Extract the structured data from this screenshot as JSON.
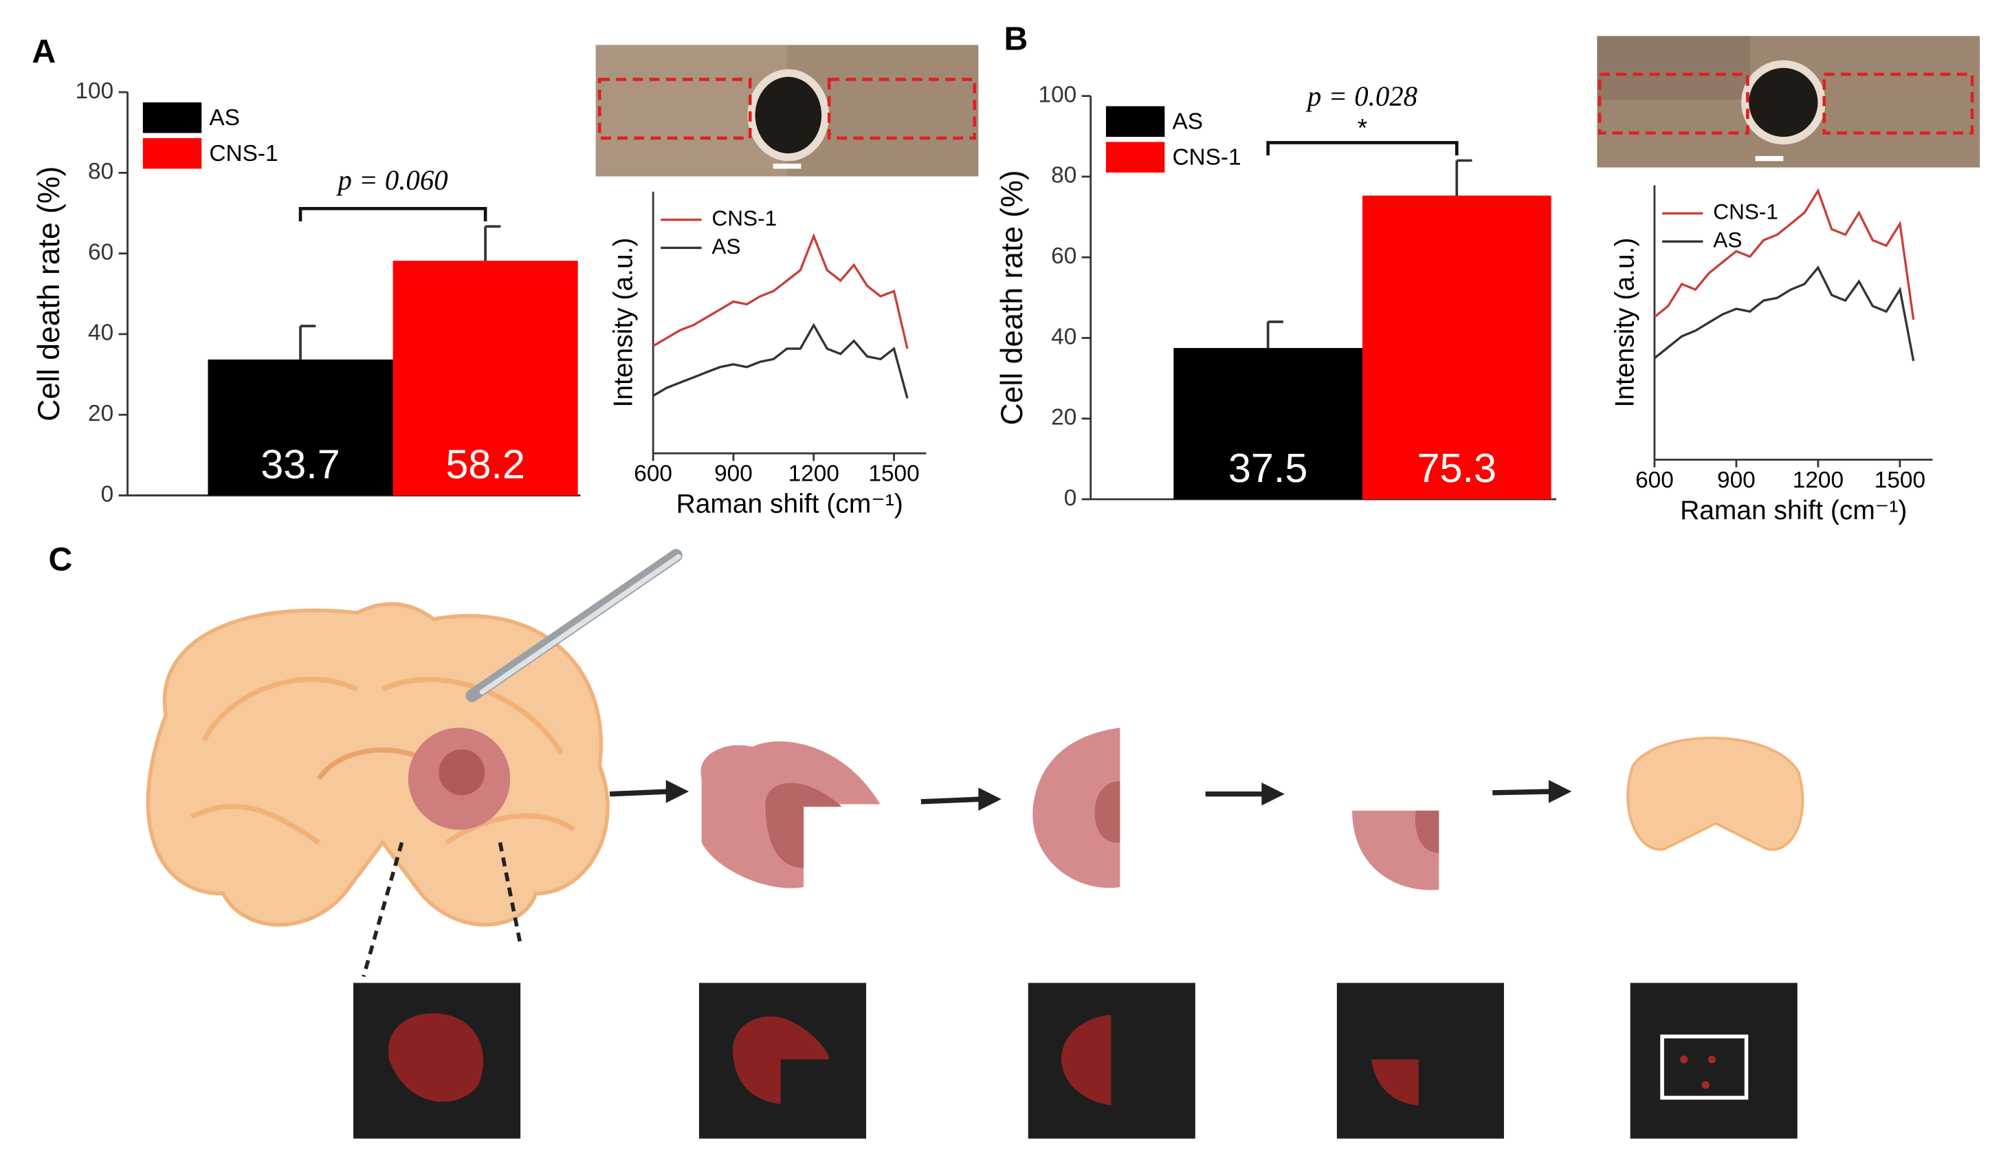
{
  "panel_labels": [
    "A",
    "B",
    "C"
  ],
  "chart_data": [
    {
      "type": "bar",
      "categories": [
        "AS",
        "CNS-1"
      ],
      "values": [
        33.7,
        58.2
      ],
      "errors": [
        8.3,
        8.5
      ],
      "colors": [
        "#000000",
        "#ff0000"
      ],
      "ylabel": "Cell death rate (%)",
      "ylim": [
        0,
        100
      ],
      "yticks": [
        0,
        20,
        40,
        60,
        80,
        100
      ],
      "annotation": "p = 0.060",
      "legend": "top-left"
    },
    {
      "type": "line",
      "xlabel": "Raman shift (cm⁻¹)",
      "ylabel": "Intensity (a.u.)",
      "xlim": [
        600,
        1620
      ],
      "ylim": [
        0,
        1
      ],
      "xticks": [
        600,
        900,
        1200,
        1500
      ],
      "legend": "top-left",
      "x": [
        600,
        650,
        700,
        750,
        800,
        850,
        900,
        950,
        1000,
        1050,
        1100,
        1150,
        1200,
        1250,
        1300,
        1350,
        1400,
        1450,
        1500,
        1550
      ],
      "series": [
        {
          "name": "CNS-1",
          "color": "#c8403a",
          "values": [
            0.41,
            0.44,
            0.47,
            0.49,
            0.52,
            0.55,
            0.58,
            0.57,
            0.6,
            0.62,
            0.66,
            0.7,
            0.83,
            0.7,
            0.66,
            0.72,
            0.64,
            0.6,
            0.62,
            0.4
          ]
        },
        {
          "name": "AS",
          "color": "#333333",
          "values": [
            0.22,
            0.25,
            0.27,
            0.29,
            0.31,
            0.33,
            0.34,
            0.33,
            0.35,
            0.36,
            0.4,
            0.4,
            0.49,
            0.4,
            0.38,
            0.43,
            0.37,
            0.36,
            0.4,
            0.21
          ]
        }
      ]
    },
    {
      "type": "bar",
      "categories": [
        "AS",
        "CNS-1"
      ],
      "values": [
        37.5,
        75.3
      ],
      "errors": [
        6.5,
        8.7
      ],
      "colors": [
        "#000000",
        "#ff0000"
      ],
      "ylabel": "Cell death rate (%)",
      "ylim": [
        0,
        100
      ],
      "yticks": [
        0,
        20,
        40,
        60,
        80,
        100
      ],
      "annotation": "p = 0.028",
      "significance": "*",
      "legend": "top-left"
    },
    {
      "type": "line",
      "xlabel": "Raman shift (cm⁻¹)",
      "ylabel": "Intensity (a.u.)",
      "xlim": [
        600,
        1620
      ],
      "ylim": [
        0,
        1
      ],
      "xticks": [
        600,
        900,
        1200,
        1500
      ],
      "legend": "top-left",
      "x": [
        600,
        650,
        700,
        750,
        800,
        850,
        900,
        950,
        1000,
        1050,
        1100,
        1150,
        1200,
        1250,
        1300,
        1350,
        1400,
        1450,
        1500,
        1550
      ],
      "series": [
        {
          "name": "CNS-1",
          "color": "#c8403a",
          "values": [
            0.52,
            0.56,
            0.64,
            0.62,
            0.68,
            0.72,
            0.76,
            0.74,
            0.8,
            0.82,
            0.86,
            0.9,
            0.98,
            0.84,
            0.82,
            0.9,
            0.8,
            0.78,
            0.86,
            0.51
          ]
        },
        {
          "name": "AS",
          "color": "#333333",
          "values": [
            0.37,
            0.41,
            0.45,
            0.47,
            0.5,
            0.53,
            0.55,
            0.54,
            0.58,
            0.59,
            0.62,
            0.64,
            0.7,
            0.6,
            0.58,
            0.65,
            0.56,
            0.54,
            0.62,
            0.36
          ]
        }
      ]
    }
  ]
}
